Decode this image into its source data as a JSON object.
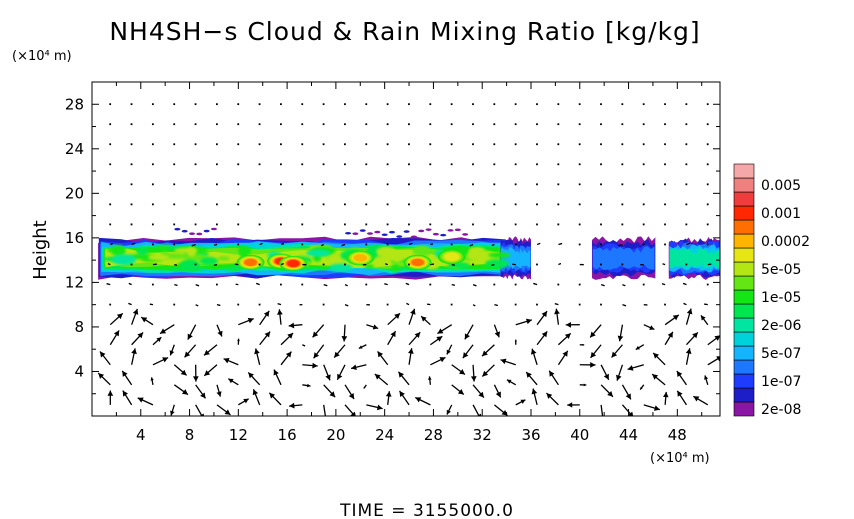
{
  "chart_data": {
    "type": "heatmap",
    "title": "NH4SH−s Cloud & Rain Mixing Ratio [kg/kg]",
    "ylabel": "Height",
    "y_unit": "(×10⁴ m)",
    "x_unit": "(×10⁴ m)",
    "xlim": [
      0,
      51.5
    ],
    "ylim": [
      0,
      30
    ],
    "xticks": [
      4,
      8,
      12,
      16,
      20,
      24,
      28,
      32,
      36,
      40,
      44,
      48
    ],
    "yticks": [
      4,
      8,
      12,
      16,
      20,
      24,
      28
    ],
    "footer": "TIME  =  3155000.0",
    "colorbar": {
      "levels": [
        {
          "label": "2e-08",
          "color": "#8b16a6"
        },
        {
          "label": "",
          "color": "#1e1ec8"
        },
        {
          "label": "1e-07",
          "color": "#1e3cff"
        },
        {
          "label": "",
          "color": "#1e78ff"
        },
        {
          "label": "5e-07",
          "color": "#14b4ff"
        },
        {
          "label": "",
          "color": "#00d2dc"
        },
        {
          "label": "2e-06",
          "color": "#00e6a0"
        },
        {
          "label": "",
          "color": "#00e650"
        },
        {
          "label": "1e-05",
          "color": "#14e614"
        },
        {
          "label": "",
          "color": "#64e614"
        },
        {
          "label": "5e-05",
          "color": "#b4e614"
        },
        {
          "label": "",
          "color": "#e6e614"
        },
        {
          "label": "0.0002",
          "color": "#ffb400"
        },
        {
          "label": "",
          "color": "#ff6e00"
        },
        {
          "label": "0.001",
          "color": "#ff2800"
        },
        {
          "label": "",
          "color": "#f03c3c"
        },
        {
          "label": "0.005",
          "color": "#f08080"
        },
        {
          "label": "",
          "color": "#f5a8a8"
        }
      ]
    },
    "cloud_band": {
      "height_range": [
        12.5,
        16.5
      ],
      "segments": [
        {
          "x": [
            0.5,
            34.0
          ],
          "level": 10
        },
        {
          "x": [
            33.5,
            36.0
          ],
          "level": 4
        },
        {
          "x": [
            41.0,
            46.2
          ],
          "level": 3
        },
        {
          "x": [
            47.3,
            51.5
          ],
          "level": 6
        }
      ],
      "maxima": [
        {
          "x": 13.0,
          "y": 13.8,
          "level": 13
        },
        {
          "x": 15.5,
          "y": 13.9,
          "level": 14
        },
        {
          "x": 16.5,
          "y": 13.7,
          "level": 14
        },
        {
          "x": 26.7,
          "y": 13.8,
          "level": 13
        },
        {
          "x": 22.0,
          "y": 14.2,
          "level": 12
        },
        {
          "x": 29.5,
          "y": 14.3,
          "level": 11
        }
      ]
    }
  }
}
